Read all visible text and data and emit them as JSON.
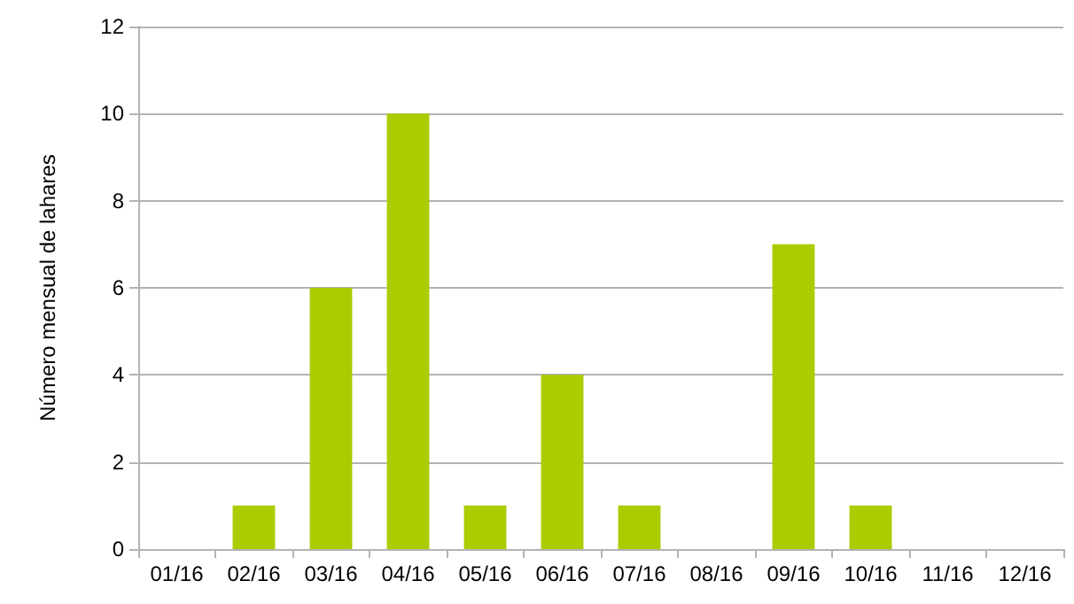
{
  "chart_data": {
    "type": "bar",
    "ylabel": "Número mensual de lahares",
    "categories": [
      "01/16",
      "02/16",
      "03/16",
      "04/16",
      "05/16",
      "06/16",
      "07/16",
      "08/16",
      "09/16",
      "10/16",
      "11/16",
      "12/16"
    ],
    "values": [
      0,
      1,
      6,
      10,
      1,
      4,
      1,
      0,
      7,
      1,
      0,
      0
    ],
    "color": "#aacc00",
    "ylim": [
      0,
      12
    ],
    "yticks": [
      0,
      2,
      4,
      6,
      8,
      10,
      12
    ],
    "grid": "y"
  }
}
